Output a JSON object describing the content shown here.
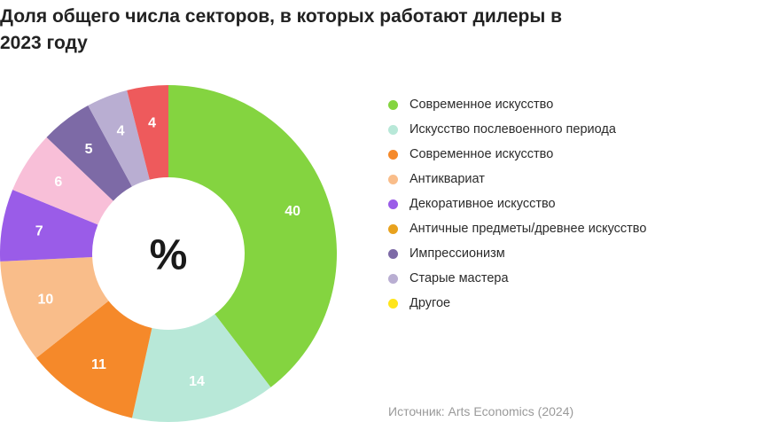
{
  "title": "Доля общего числа секторов, в которых работают дилеры в 2023 году",
  "source": "Источник: Arts Economics (2024)",
  "chart_data": {
    "type": "pie",
    "center_label": "%",
    "slices": [
      {
        "label": "Современное искусство",
        "value": 40,
        "color": "#84d440",
        "text_color": "#ffffff"
      },
      {
        "label": "Искусство послевоенного периода",
        "value": 14,
        "color": "#b8e8d8",
        "text_color": "#ffffff"
      },
      {
        "label": "Современное искусство",
        "value": 11,
        "color": "#f5892a",
        "text_color": "#ffffff"
      },
      {
        "label": "Антиквариат",
        "value": 10,
        "color": "#f9bd8a",
        "text_color": "#ffffff"
      },
      {
        "label": "Декоративное искусство",
        "value": 7,
        "color": "#9a5ce8",
        "text_color": "#ffffff"
      },
      {
        "label": "Античные предметы/древнее искусство",
        "value": 6,
        "color": "#f8bfd8",
        "text_color": "#ffffff",
        "legend_color": "#e8a21e"
      },
      {
        "label": "Импрессионизм",
        "value": 5,
        "color": "#7d6aa6",
        "text_color": "#ffffff"
      },
      {
        "label": "Старые мастера",
        "value": 4,
        "color": "#b9aed2",
        "text_color": "#ffffff"
      },
      {
        "label": "Другое",
        "value": 4,
        "color": "#ee5a5c",
        "text_color": "#ffffff",
        "legend_color": "#ffe51a"
      }
    ]
  }
}
